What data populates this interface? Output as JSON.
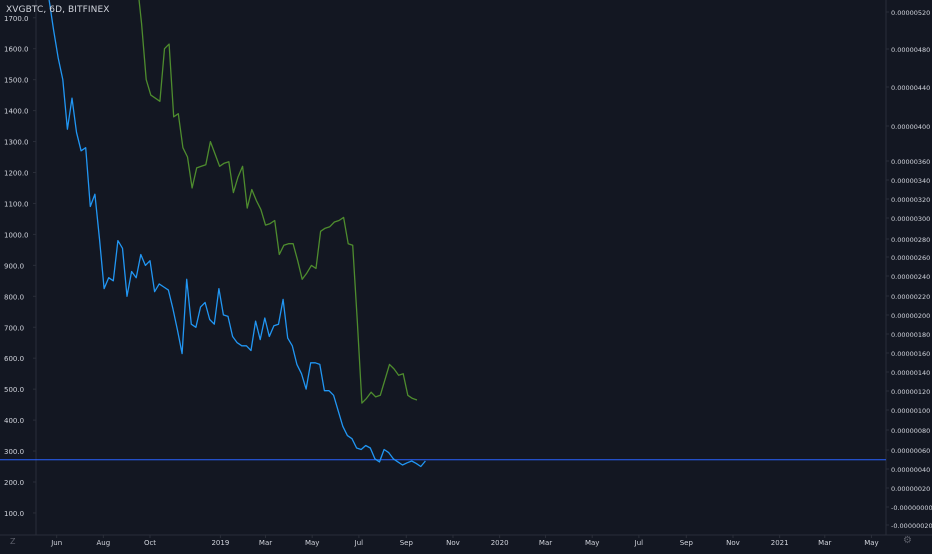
{
  "symbol": {
    "title": "XVGBTC, 6D, BITFINEX"
  },
  "colors": {
    "background": "#131722",
    "text": "#d1d4dc",
    "axis_line": "#2a2e39",
    "blue_series": "#2196f3",
    "green_series": "#4e8c2e",
    "horizontal_line": "#2962ff"
  },
  "icons": {
    "bottom_left": "Z",
    "bottom_right": "⚙"
  },
  "chart_data": {
    "type": "line",
    "title": "XVGBTC, 6D, BITFINEX",
    "grid": false,
    "x_axis": {
      "tick_labels": [
        "Jun",
        "Aug",
        "Oct",
        "2019",
        "Mar",
        "May",
        "Jul",
        "Sep",
        "Nov",
        "2020",
        "Mar",
        "May",
        "Jul",
        "Sep",
        "Nov",
        "2021",
        "Mar",
        "May"
      ],
      "tick_dates": [
        "2018-06-01",
        "2018-08-01",
        "2018-10-01",
        "2019-01-01",
        "2019-03-01",
        "2019-05-01",
        "2019-07-01",
        "2019-09-01",
        "2019-11-01",
        "2020-01-01",
        "2020-03-01",
        "2020-05-01",
        "2020-07-01",
        "2020-09-01",
        "2020-11-01",
        "2021-01-01",
        "2021-03-01",
        "2021-05-01"
      ],
      "range": [
        "2018-05-05",
        "2021-05-20"
      ]
    },
    "left_axis": {
      "tick_labels": [
        "100.0",
        "200.0",
        "300.0",
        "400.0",
        "500.0",
        "600.0",
        "700.0",
        "800.0",
        "900.0",
        "1000.0",
        "1100.0",
        "1200.0",
        "1300.0",
        "1400.0",
        "1500.0",
        "1600.0",
        "1700.0"
      ],
      "range": [
        -5,
        1820
      ]
    },
    "right_axis": {
      "tick_labels": [
        "-0.00000020",
        "-0.00000000",
        "0.00000020",
        "0.00000040",
        "0.00000060",
        "0.00000080",
        "0.00000100",
        "0.00000120",
        "0.00000140",
        "0.00000160",
        "0.00000180",
        "0.00000200",
        "0.00000220",
        "0.00000240",
        "0.00000260",
        "0.00000280",
        "0.00000300",
        "0.00000320",
        "0.00000340",
        "0.00000360",
        "0.00000400",
        "0.00000440",
        "0.00000480",
        "0.00000520"
      ],
      "scale": "log"
    },
    "series": [
      {
        "axis": "left",
        "color": "#2196f3",
        "points": [
          [
            "2018-05-22",
            1760
          ],
          [
            "2018-05-28",
            1660
          ],
          [
            "2018-06-03",
            1570
          ],
          [
            "2018-06-09",
            1500
          ],
          [
            "2018-06-15",
            1340
          ],
          [
            "2018-06-21",
            1440
          ],
          [
            "2018-06-27",
            1330
          ],
          [
            "2018-07-03",
            1270
          ],
          [
            "2018-07-09",
            1280
          ],
          [
            "2018-07-15",
            1090
          ],
          [
            "2018-07-21",
            1130
          ],
          [
            "2018-07-27",
            985
          ],
          [
            "2018-08-02",
            825
          ],
          [
            "2018-08-08",
            860
          ],
          [
            "2018-08-14",
            850
          ],
          [
            "2018-08-20",
            980
          ],
          [
            "2018-08-26",
            955
          ],
          [
            "2018-09-01",
            800
          ],
          [
            "2018-09-07",
            880
          ],
          [
            "2018-09-13",
            860
          ],
          [
            "2018-09-19",
            935
          ],
          [
            "2018-09-25",
            900
          ],
          [
            "2018-10-01",
            915
          ],
          [
            "2018-10-07",
            815
          ],
          [
            "2018-10-13",
            840
          ],
          [
            "2018-10-19",
            830
          ],
          [
            "2018-10-25",
            820
          ],
          [
            "2018-10-31",
            760
          ],
          [
            "2018-11-06",
            690
          ],
          [
            "2018-11-12",
            615
          ],
          [
            "2018-11-18",
            855
          ],
          [
            "2018-11-24",
            710
          ],
          [
            "2018-11-30",
            700
          ],
          [
            "2018-12-06",
            765
          ],
          [
            "2018-12-12",
            780
          ],
          [
            "2018-12-18",
            725
          ],
          [
            "2018-12-24",
            710
          ],
          [
            "2018-12-30",
            825
          ],
          [
            "2019-01-05",
            740
          ],
          [
            "2019-01-11",
            735
          ],
          [
            "2019-01-17",
            670
          ],
          [
            "2019-01-23",
            650
          ],
          [
            "2019-01-29",
            640
          ],
          [
            "2019-02-04",
            640
          ],
          [
            "2019-02-10",
            625
          ],
          [
            "2019-02-16",
            720
          ],
          [
            "2019-02-22",
            660
          ],
          [
            "2019-02-28",
            730
          ],
          [
            "2019-03-06",
            670
          ],
          [
            "2019-03-12",
            705
          ],
          [
            "2019-03-18",
            710
          ],
          [
            "2019-03-24",
            790
          ],
          [
            "2019-03-30",
            665
          ],
          [
            "2019-04-05",
            640
          ],
          [
            "2019-04-11",
            580
          ],
          [
            "2019-04-17",
            550
          ],
          [
            "2019-04-23",
            500
          ],
          [
            "2019-04-29",
            585
          ],
          [
            "2019-05-05",
            585
          ],
          [
            "2019-05-11",
            580
          ],
          [
            "2019-05-17",
            495
          ],
          [
            "2019-05-23",
            495
          ],
          [
            "2019-05-29",
            480
          ],
          [
            "2019-06-04",
            430
          ],
          [
            "2019-06-10",
            380
          ],
          [
            "2019-06-16",
            350
          ],
          [
            "2019-06-22",
            340
          ],
          [
            "2019-06-28",
            310
          ],
          [
            "2019-07-04",
            305
          ],
          [
            "2019-07-10",
            318
          ],
          [
            "2019-07-16",
            310
          ],
          [
            "2019-07-22",
            275
          ],
          [
            "2019-07-28",
            265
          ],
          [
            "2019-08-03",
            305
          ],
          [
            "2019-08-09",
            295
          ],
          [
            "2019-08-15",
            275
          ],
          [
            "2019-08-21",
            265
          ],
          [
            "2019-08-27",
            255
          ],
          [
            "2019-09-02",
            262
          ],
          [
            "2019-09-08",
            268
          ],
          [
            "2019-09-14",
            260
          ],
          [
            "2019-09-20",
            250
          ],
          [
            "2019-09-26",
            268
          ]
        ]
      },
      {
        "axis": "left",
        "color": "#4e8c2e",
        "points": [
          [
            "2018-09-14",
            1820
          ],
          [
            "2018-09-20",
            1680
          ],
          [
            "2018-09-26",
            1500
          ],
          [
            "2018-10-02",
            1450
          ],
          [
            "2018-10-08",
            1440
          ],
          [
            "2018-10-14",
            1430
          ],
          [
            "2018-10-20",
            1600
          ],
          [
            "2018-10-26",
            1615
          ],
          [
            "2018-11-01",
            1380
          ],
          [
            "2018-11-07",
            1390
          ],
          [
            "2018-11-13",
            1280
          ],
          [
            "2018-11-19",
            1250
          ],
          [
            "2018-11-25",
            1150
          ],
          [
            "2018-12-01",
            1215
          ],
          [
            "2018-12-07",
            1220
          ],
          [
            "2018-12-13",
            1225
          ],
          [
            "2018-12-19",
            1300
          ],
          [
            "2018-12-25",
            1260
          ],
          [
            "2018-12-31",
            1220
          ],
          [
            "2019-01-06",
            1230
          ],
          [
            "2019-01-12",
            1235
          ],
          [
            "2019-01-18",
            1135
          ],
          [
            "2019-01-24",
            1185
          ],
          [
            "2019-01-30",
            1220
          ],
          [
            "2019-02-05",
            1085
          ],
          [
            "2019-02-11",
            1145
          ],
          [
            "2019-02-17",
            1110
          ],
          [
            "2019-02-23",
            1080
          ],
          [
            "2019-03-01",
            1030
          ],
          [
            "2019-03-07",
            1035
          ],
          [
            "2019-03-13",
            1045
          ],
          [
            "2019-03-19",
            935
          ],
          [
            "2019-03-25",
            965
          ],
          [
            "2019-03-31",
            970
          ],
          [
            "2019-04-06",
            970
          ],
          [
            "2019-04-12",
            915
          ],
          [
            "2019-04-18",
            855
          ],
          [
            "2019-04-24",
            875
          ],
          [
            "2019-04-30",
            900
          ],
          [
            "2019-05-06",
            890
          ],
          [
            "2019-05-12",
            1010
          ],
          [
            "2019-05-18",
            1020
          ],
          [
            "2019-05-24",
            1025
          ],
          [
            "2019-05-30",
            1040
          ],
          [
            "2019-06-05",
            1045
          ],
          [
            "2019-06-11",
            1055
          ],
          [
            "2019-06-17",
            970
          ],
          [
            "2019-06-23",
            965
          ],
          [
            "2019-06-29",
            720
          ],
          [
            "2019-07-05",
            455
          ],
          [
            "2019-07-11",
            470
          ],
          [
            "2019-07-17",
            490
          ],
          [
            "2019-07-23",
            475
          ],
          [
            "2019-07-29",
            480
          ],
          [
            "2019-08-04",
            530
          ],
          [
            "2019-08-10",
            580
          ],
          [
            "2019-08-16",
            565
          ],
          [
            "2019-08-22",
            545
          ],
          [
            "2019-08-28",
            550
          ],
          [
            "2019-09-03",
            480
          ],
          [
            "2019-09-09",
            470
          ],
          [
            "2019-09-15",
            465
          ]
        ]
      }
    ],
    "horizontal_line": {
      "axis": "left",
      "value": 272,
      "color": "#2962ff"
    }
  }
}
